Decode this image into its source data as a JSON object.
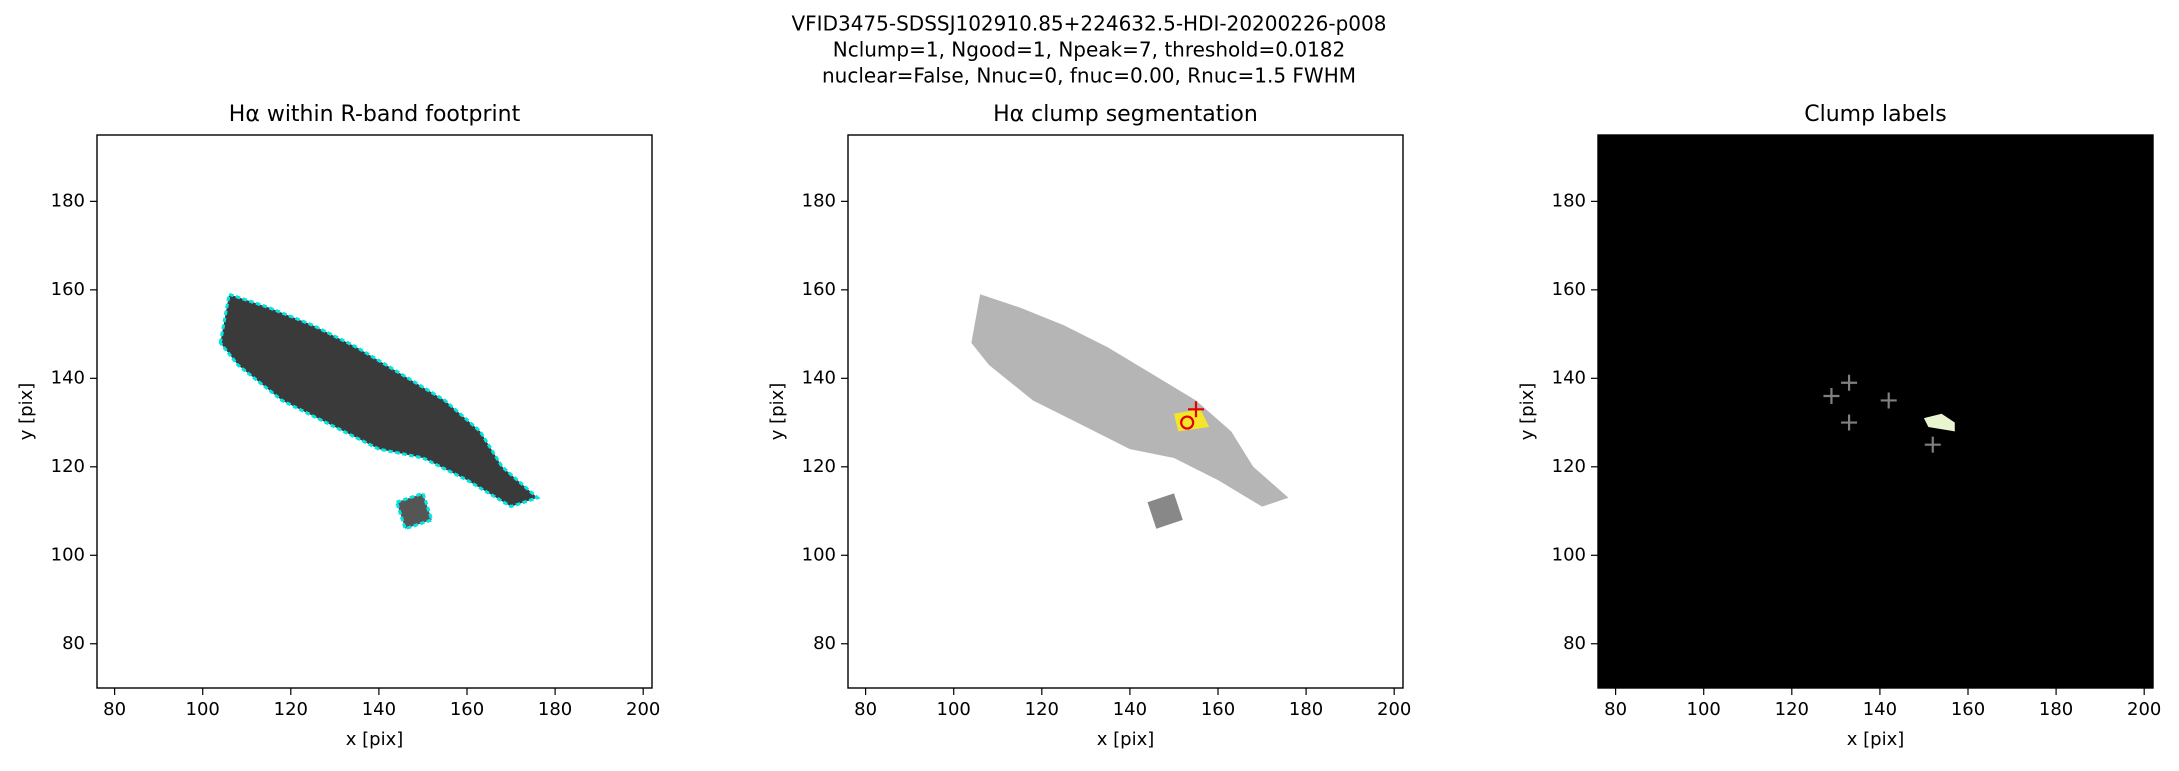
{
  "suptitle": [
    "VFID3475-SDSSJ102910.85+224632.5-HDI-20200226-p008",
    "Nclump=1, Ngood=1, Npeak=7, threshold=0.0182",
    "nuclear=False, Nnuc=0, fnuc=0.00, Rnuc=1.5 FWHM"
  ],
  "chart_data": [
    {
      "type": "image",
      "title": "Hα within R-band footprint",
      "xlabel": "x [pix]",
      "ylabel": "y [pix]",
      "xlim": [
        76,
        202
      ],
      "ylim": [
        70,
        195
      ],
      "xticks": [
        80,
        100,
        120,
        140,
        160,
        180,
        200
      ],
      "yticks": [
        80,
        100,
        120,
        140,
        160,
        180
      ],
      "background": "#ffffff",
      "markers": []
    },
    {
      "type": "image",
      "title": "Hα clump segmentation",
      "xlabel": "x [pix]",
      "ylabel": "y [pix]",
      "xlim": [
        76,
        202
      ],
      "ylim": [
        70,
        195
      ],
      "xticks": [
        80,
        100,
        120,
        140,
        160,
        180,
        200
      ],
      "yticks": [
        80,
        100,
        120,
        140,
        160,
        180
      ],
      "background": "#ffffff",
      "markers": [
        {
          "marker": "circle",
          "color": "#e00000",
          "x": [
            153
          ],
          "y": [
            130
          ]
        },
        {
          "marker": "plus",
          "color": "#e00000",
          "x": [
            155
          ],
          "y": [
            133
          ]
        }
      ]
    },
    {
      "type": "image",
      "title": "Clump labels",
      "xlabel": "x [pix]",
      "ylabel": "y [pix]",
      "xlim": [
        76,
        202
      ],
      "ylim": [
        70,
        195
      ],
      "xticks": [
        80,
        100,
        120,
        140,
        160,
        180,
        200
      ],
      "yticks": [
        80,
        100,
        120,
        140,
        160,
        180
      ],
      "background": "#000000",
      "markers": [
        {
          "marker": "plus",
          "color": "#808080",
          "x": [
            129,
            133,
            133,
            142,
            152
          ],
          "y": [
            136,
            139,
            130,
            135,
            125
          ]
        }
      ]
    }
  ]
}
